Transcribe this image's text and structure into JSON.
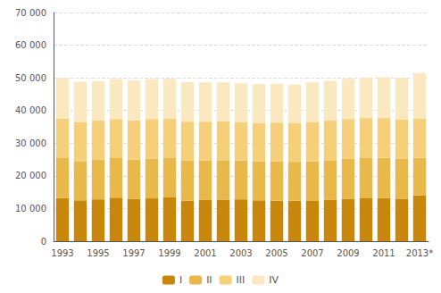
{
  "chart_data": {
    "type": "bar",
    "stacked": true,
    "categories": [
      "1993",
      null,
      "1995",
      null,
      "1997",
      null,
      "1999",
      null,
      "2001",
      null,
      "2003",
      null,
      "2005",
      null,
      "2007",
      null,
      "2009",
      null,
      "2011",
      null,
      "2013*"
    ],
    "series": [
      {
        "name": "I",
        "color": "#C8860A",
        "values": [
          13200,
          12500,
          12800,
          13300,
          12900,
          13100,
          13400,
          12400,
          12600,
          12700,
          12800,
          12500,
          12400,
          12400,
          12300,
          12600,
          13000,
          13300,
          13200,
          13000,
          14000
        ]
      },
      {
        "name": "II",
        "color": "#E8B84B",
        "values": [
          12200,
          12000,
          12100,
          12100,
          12100,
          12200,
          12200,
          12200,
          12100,
          12100,
          11900,
          11900,
          12000,
          11900,
          12100,
          12200,
          12200,
          12300,
          12300,
          12200,
          11500
        ]
      },
      {
        "name": "III",
        "color": "#F5CF7A",
        "values": [
          12100,
          12000,
          12000,
          12000,
          12000,
          12100,
          12000,
          12000,
          11900,
          11900,
          11800,
          11800,
          11900,
          11800,
          12100,
          12100,
          12200,
          12100,
          12200,
          12100,
          12100
        ]
      },
      {
        "name": "IV",
        "color": "#FAE8C0",
        "values": [
          12500,
          12300,
          12100,
          12200,
          12200,
          12200,
          12100,
          12100,
          12000,
          11900,
          11800,
          11900,
          11900,
          11900,
          12100,
          12200,
          12300,
          12400,
          12500,
          12700,
          13900
        ]
      }
    ],
    "ylim": [
      0,
      70000
    ],
    "yticks": [
      0,
      {
        "value": 10000,
        "label": "10 000"
      },
      {
        "value": 20000,
        "label": "20 000"
      },
      {
        "value": 30000,
        "label": "30 000"
      },
      {
        "value": 40000,
        "label": "40 000"
      },
      {
        "value": 50000,
        "label": "50 000"
      },
      {
        "value": 60000,
        "label": "60 000"
      },
      {
        "value": 70000,
        "label": "70 000"
      }
    ],
    "grid": true,
    "legend": "bottom"
  }
}
